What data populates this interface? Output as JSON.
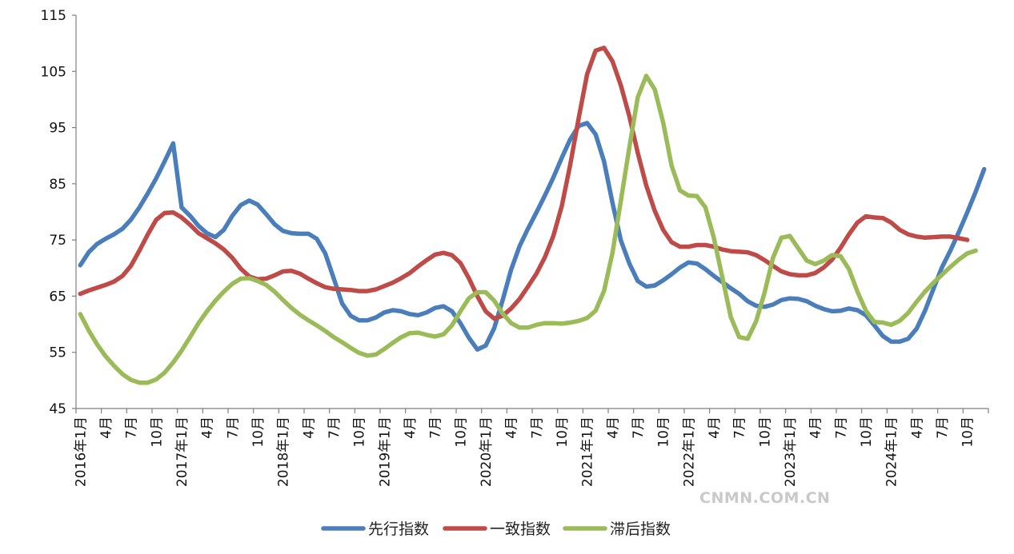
{
  "chart_data": {
    "type": "line",
    "title": "",
    "xlabel": "",
    "ylabel": "",
    "ylim": [
      45,
      115
    ],
    "yticks": [
      45,
      55,
      65,
      75,
      85,
      95,
      105,
      115
    ],
    "grid": false,
    "legend_position": "bottom",
    "x_tick_labels": [
      "2016年1月",
      "4月",
      "7月",
      "10月",
      "2017年1月",
      "4月",
      "7月",
      "10月",
      "2018年1月",
      "4月",
      "7月",
      "10月",
      "2019年1月",
      "4月",
      "7月",
      "10月",
      "2020年1月",
      "4月",
      "7月",
      "10月",
      "2021年1月",
      "4月",
      "7月",
      "10月",
      "2022年1月",
      "4月",
      "7月",
      "10月",
      "2023年1月",
      "4月",
      "7月",
      "10月",
      "2024年1月",
      "4月",
      "7月",
      "10月"
    ],
    "series": [
      {
        "name": "先行指数",
        "color": "#4a7ebb",
        "values": [
          70.5,
          72.8,
          74.3,
          75.2,
          76.0,
          77.0,
          78.6,
          80.8,
          83.3,
          86.0,
          89.0,
          92.2,
          80.8,
          79.3,
          77.5,
          76.2,
          75.5,
          76.8,
          79.3,
          81.2,
          82.0,
          81.3,
          79.6,
          77.8,
          76.6,
          76.2,
          76.1,
          76.1,
          75.2,
          72.6,
          68.2,
          63.7,
          61.5,
          60.7,
          60.7,
          61.2,
          62.1,
          62.5,
          62.3,
          61.8,
          61.6,
          62.1,
          62.9,
          63.2,
          62.3,
          60.2,
          57.6,
          55.5,
          56.2,
          59.3,
          64.3,
          69.7,
          73.9,
          77.0,
          79.9,
          82.9,
          86.1,
          89.6,
          92.9,
          95.3,
          95.8,
          93.8,
          89.0,
          81.6,
          74.9,
          70.8,
          67.7,
          66.7,
          66.9,
          67.8,
          68.9,
          70.1,
          71.0,
          70.8,
          69.8,
          68.6,
          67.5,
          66.4,
          65.4,
          64.1,
          63.3,
          63.1,
          63.5,
          64.3,
          64.6,
          64.5,
          64.1,
          63.3,
          62.7,
          62.3,
          62.4,
          62.8,
          62.5,
          61.6,
          59.8,
          57.9,
          56.9,
          56.9,
          57.4,
          59.2,
          62.4,
          66.3,
          70.1,
          73.1,
          76.4,
          79.9,
          83.6,
          87.6
        ]
      },
      {
        "name": "一致指数",
        "color": "#be4b48",
        "values": [
          65.4,
          66.0,
          66.5,
          67.0,
          67.6,
          68.6,
          70.4,
          73.1,
          76.0,
          78.6,
          79.8,
          79.9,
          79.0,
          77.7,
          76.2,
          75.3,
          74.4,
          73.3,
          71.8,
          69.9,
          68.5,
          68.0,
          68.1,
          68.7,
          69.4,
          69.5,
          69.0,
          68.1,
          67.3,
          66.6,
          66.3,
          66.2,
          66.1,
          65.9,
          65.9,
          66.2,
          66.8,
          67.4,
          68.2,
          69.1,
          70.3,
          71.4,
          72.4,
          72.7,
          72.3,
          70.9,
          68.2,
          65.0,
          62.3,
          61.0,
          61.5,
          62.8,
          64.5,
          66.7,
          69.0,
          71.9,
          75.7,
          81.0,
          88.4,
          96.7,
          104.5,
          108.7,
          109.2,
          106.8,
          102.5,
          97.0,
          90.5,
          84.7,
          80.2,
          76.8,
          74.6,
          73.8,
          73.8,
          74.1,
          74.1,
          73.8,
          73.3,
          73.0,
          72.9,
          72.8,
          72.3,
          71.4,
          70.4,
          69.4,
          68.9,
          68.7,
          68.7,
          69.1,
          70.1,
          71.5,
          73.6,
          76.0,
          78.1,
          79.2,
          79.0,
          78.9,
          78.1,
          76.8,
          76.0,
          75.6,
          75.4,
          75.5,
          75.6,
          75.6,
          75.3,
          75.0
        ]
      },
      {
        "name": "滞后指数",
        "color": "#9bbb59",
        "values": [
          61.8,
          58.9,
          56.4,
          54.3,
          52.6,
          51.1,
          50.1,
          49.6,
          49.6,
          50.2,
          51.4,
          53.2,
          55.3,
          57.7,
          60.2,
          62.3,
          64.2,
          65.8,
          67.2,
          68.1,
          68.2,
          67.7,
          67.0,
          65.8,
          64.3,
          62.9,
          61.7,
          60.7,
          59.8,
          58.8,
          57.7,
          56.8,
          55.8,
          54.9,
          54.4,
          54.6,
          55.6,
          56.7,
          57.7,
          58.4,
          58.5,
          58.1,
          57.8,
          58.2,
          59.8,
          62.3,
          64.6,
          65.7,
          65.7,
          64.2,
          61.9,
          60.2,
          59.4,
          59.4,
          59.9,
          60.2,
          60.2,
          60.1,
          60.3,
          60.6,
          61.1,
          62.4,
          65.9,
          72.7,
          82.0,
          91.5,
          100.4,
          104.2,
          101.8,
          95.9,
          88.2,
          83.8,
          82.9,
          82.8,
          80.8,
          75.4,
          68.4,
          61.3,
          57.7,
          57.4,
          60.5,
          65.6,
          71.8,
          75.4,
          75.7,
          73.5,
          71.3,
          70.7,
          71.3,
          72.3,
          72.1,
          69.8,
          65.8,
          62.4,
          60.4,
          60.3,
          59.9,
          60.6,
          62.0,
          64.0,
          65.8,
          67.4,
          68.8,
          70.2,
          71.5,
          72.6,
          73.1
        ]
      }
    ]
  },
  "watermark": "CNMN.COM.CN"
}
